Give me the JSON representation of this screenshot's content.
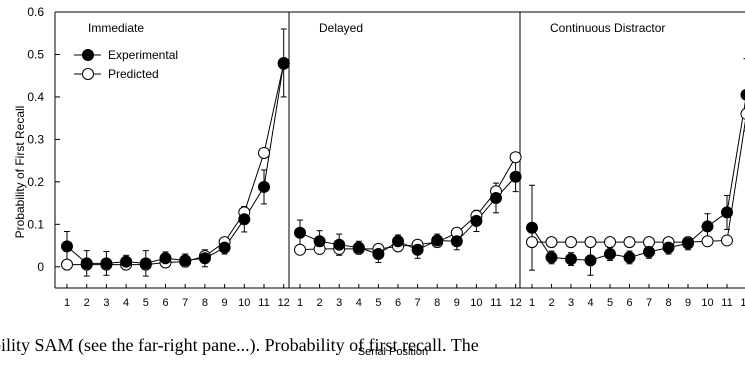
{
  "chart_data": {
    "type": "line",
    "ylabel": "Probability of First Recall",
    "xlabel": "Serial Position",
    "ylim": [
      -0.05,
      0.6
    ],
    "yticks": [
      0,
      0.1,
      0.2,
      0.3,
      0.4,
      0.5,
      0.6
    ],
    "ytick_labels": [
      "0",
      "0.1",
      "0.2",
      "0.3",
      "0.4",
      "0.5",
      "0.6"
    ],
    "x": [
      1,
      2,
      3,
      4,
      5,
      6,
      7,
      8,
      9,
      10,
      11,
      12
    ],
    "legend": {
      "placement": "top-left",
      "entries": [
        "Experimental",
        "Predicted"
      ]
    },
    "panels": [
      {
        "title": "Immediate",
        "series": [
          {
            "name": "Experimental",
            "marker": "filled",
            "values": [
              0.048,
              0.008,
              0.008,
              0.012,
              0.008,
              0.02,
              0.015,
              0.02,
              0.045,
              0.112,
              0.188,
              0.48
            ],
            "error": [
              0.035,
              0.03,
              0.028,
              0.015,
              0.03,
              0.015,
              0.015,
              0.02,
              0.015,
              0.03,
              0.04,
              0.08
            ]
          },
          {
            "name": "Predicted",
            "marker": "open",
            "values": [
              0.005,
              0.005,
              0.005,
              0.005,
              0.005,
              0.01,
              0.012,
              0.025,
              0.058,
              0.128,
              0.268,
              0.478
            ]
          }
        ]
      },
      {
        "title": "Delayed",
        "series": [
          {
            "name": "Experimental",
            "marker": "filled",
            "values": [
              0.08,
              0.06,
              0.052,
              0.045,
              0.03,
              0.06,
              0.04,
              0.062,
              0.06,
              0.108,
              0.162,
              0.212
            ],
            "error": [
              0.03,
              0.025,
              0.025,
              0.015,
              0.02,
              0.015,
              0.02,
              0.015,
              0.02,
              0.025,
              0.035,
              0.035
            ]
          },
          {
            "name": "Predicted",
            "marker": "open",
            "values": [
              0.04,
              0.042,
              0.042,
              0.042,
              0.042,
              0.048,
              0.052,
              0.058,
              0.08,
              0.12,
              0.178,
              0.258
            ]
          }
        ]
      },
      {
        "title": "Continuous Distractor",
        "series": [
          {
            "name": "Experimental",
            "marker": "filled",
            "values": [
              0.092,
              0.022,
              0.018,
              0.015,
              0.03,
              0.022,
              0.035,
              0.045,
              0.055,
              0.095,
              0.128,
              0.405
            ],
            "error": [
              0.1,
              0.015,
              0.015,
              0.035,
              0.015,
              0.015,
              0.015,
              0.015,
              0.015,
              0.03,
              0.04,
              0.085
            ]
          },
          {
            "name": "Predicted",
            "marker": "open",
            "values": [
              0.058,
              0.058,
              0.058,
              0.058,
              0.058,
              0.058,
              0.058,
              0.058,
              0.058,
              0.06,
              0.062,
              0.36
            ]
          }
        ]
      }
    ]
  },
  "caption": "bility SAM (see the far-right pane...). Probability of first recall. The"
}
